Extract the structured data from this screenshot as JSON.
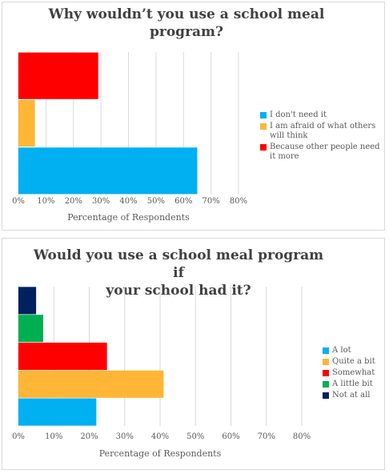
{
  "chart_data": [
    {
      "type": "bar",
      "orientation": "horizontal",
      "title": "Why wouldn’t you use a school meal\nprogram?",
      "xlabel": "Percentage of Respondents",
      "ylabel": "",
      "xlim": [
        0,
        80
      ],
      "xticks": [
        "0%",
        "10%",
        "20%",
        "30%",
        "40%",
        "50%",
        "60%",
        "70%",
        "80%"
      ],
      "grid": true,
      "legend_position": "right",
      "categories": [
        "I don't need it",
        "I am afraid of what others will think",
        "Because other people need it more"
      ],
      "values": [
        65,
        6,
        29
      ],
      "colors": [
        "#00b0f0",
        "#ffb536",
        "#ff0000"
      ]
    },
    {
      "type": "bar",
      "orientation": "horizontal",
      "title": "Would you use a school meal program if\nyour school had it?",
      "xlabel": "Percentage of Respondents",
      "ylabel": "",
      "xlim": [
        0,
        80
      ],
      "xticks": [
        "0%",
        "10%",
        "20%",
        "30%",
        "40%",
        "50%",
        "60%",
        "70%",
        "80%"
      ],
      "grid": true,
      "legend_position": "right",
      "categories": [
        "A lot",
        "Quite a bit",
        "Somewhat",
        "A little bit",
        "Not at all"
      ],
      "values": [
        22,
        41,
        25,
        7,
        5
      ],
      "colors": [
        "#00b0f0",
        "#ffb536",
        "#ff0000",
        "#00b050",
        "#002060"
      ]
    }
  ]
}
